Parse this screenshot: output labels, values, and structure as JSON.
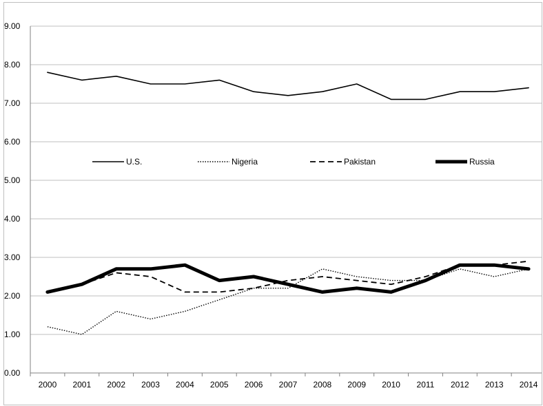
{
  "chart_data": {
    "type": "line",
    "title": "",
    "xlabel": "",
    "ylabel": "",
    "x": [
      "2000",
      "2001",
      "2002",
      "2003",
      "2004",
      "2005",
      "2006",
      "2007",
      "2008",
      "2009",
      "2010",
      "2011",
      "2012",
      "2013",
      "2014"
    ],
    "ylim": [
      0,
      9
    ],
    "yticks": [
      "0.00",
      "1.00",
      "2.00",
      "3.00",
      "4.00",
      "5.00",
      "6.00",
      "7.00",
      "8.00",
      "9.00"
    ],
    "grid": true,
    "legend_position": "inside-middle",
    "series": [
      {
        "name": "U.S.",
        "style": "solid",
        "values": [
          7.8,
          7.6,
          7.7,
          7.5,
          7.5,
          7.6,
          7.3,
          7.2,
          7.3,
          7.5,
          7.1,
          7.1,
          7.3,
          7.3,
          7.4
        ]
      },
      {
        "name": "Nigeria",
        "style": "dotted",
        "values": [
          1.2,
          1.0,
          1.6,
          1.4,
          1.6,
          1.9,
          2.2,
          2.2,
          2.7,
          2.5,
          2.4,
          2.4,
          2.7,
          2.5,
          2.7
        ]
      },
      {
        "name": "Pakistan",
        "style": "dashed",
        "values": [
          2.1,
          2.3,
          2.6,
          2.5,
          2.1,
          2.1,
          2.2,
          2.4,
          2.5,
          2.4,
          2.3,
          2.5,
          2.8,
          2.8,
          2.9
        ]
      },
      {
        "name": "Russia",
        "style": "thick",
        "values": [
          2.1,
          2.3,
          2.7,
          2.7,
          2.8,
          2.4,
          2.5,
          2.3,
          2.1,
          2.2,
          2.1,
          2.4,
          2.8,
          2.8,
          2.7
        ]
      }
    ],
    "colors": {
      "line": "#000000",
      "grid": "#bfbfbf"
    }
  }
}
